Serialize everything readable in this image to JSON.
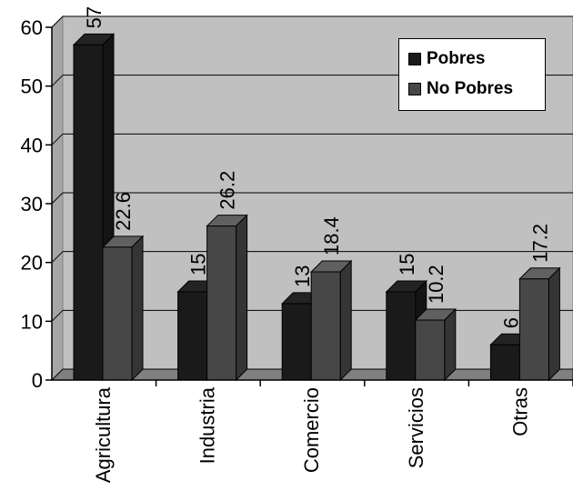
{
  "chart_data": {
    "type": "bar",
    "three_d": true,
    "categories": [
      "Agricultura",
      "Industria",
      "Comercio",
      "Servicios",
      "Otras"
    ],
    "series": [
      {
        "name": "Pobres",
        "values": [
          57,
          15,
          13,
          15,
          6
        ],
        "labels": [
          "57",
          "15",
          "13",
          "15",
          "6"
        ],
        "color": "#1a1a1a"
      },
      {
        "name": "No Pobres",
        "values": [
          22.6,
          26.2,
          18.4,
          10.2,
          17.2
        ],
        "labels": [
          "22.6",
          "26.2",
          "18.4",
          "10.2",
          "17.2"
        ],
        "color": "#474747"
      }
    ],
    "ylim": [
      0,
      60
    ],
    "yticks": [
      0,
      10,
      20,
      30,
      40,
      50,
      60
    ],
    "ytick_labels": [
      "0",
      "10",
      "20",
      "30",
      "40",
      "50",
      "60"
    ],
    "grid": true,
    "legend_position": "top-right",
    "wall_color": "#c0c0c0",
    "floor_color": "#808080",
    "xlabel": "",
    "ylabel": "",
    "title": ""
  }
}
